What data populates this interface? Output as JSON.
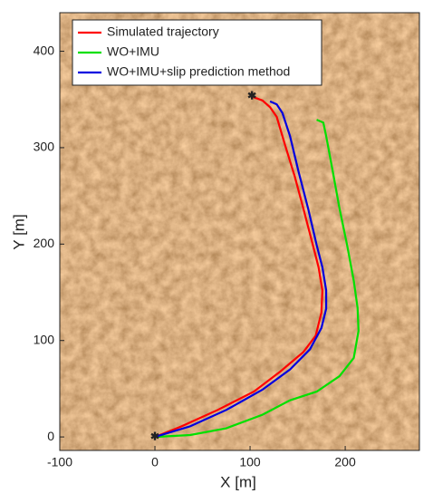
{
  "chart_data": {
    "type": "line",
    "xlabel": "X [m]",
    "ylabel": "Y [m]",
    "xlim": [
      -100,
      278
    ],
    "ylim": [
      -14,
      440
    ],
    "xticks": [
      -100,
      0,
      100,
      200
    ],
    "yticks": [
      0,
      100,
      200,
      300,
      400
    ],
    "legend": "upper left",
    "series": [
      {
        "name": "Simulated trajectory",
        "color": "#ff0000",
        "x": [
          0,
          28,
          66,
          104,
          132,
          156,
          169,
          175,
          176,
          172,
          166,
          156,
          147,
          137,
          128,
          121,
          113,
          102
        ],
        "values": [
          0,
          11,
          28,
          47,
          68,
          88,
          105,
          129,
          152,
          176,
          199,
          237,
          270,
          302,
          332,
          342,
          349,
          353
        ]
      },
      {
        "name": "WO+IMU",
        "color": "#00e000",
        "x": [
          0,
          37,
          75,
          113,
          142,
          170,
          194,
          209,
          214,
          213,
          209,
          202,
          194,
          187,
          180,
          177,
          170
        ],
        "values": [
          0,
          2,
          9,
          23,
          38,
          47,
          63,
          82,
          110,
          134,
          162,
          199,
          237,
          275,
          312,
          326,
          329
        ]
      },
      {
        "name": "WO+IMU+slip prediction method",
        "color": "#0000e0",
        "x": [
          0,
          37,
          75,
          113,
          142,
          163,
          175,
          180,
          180,
          176,
          170,
          161,
          151,
          142,
          134,
          128,
          121
        ],
        "values": [
          0,
          11,
          28,
          49,
          70,
          91,
          113,
          133,
          152,
          176,
          199,
          237,
          275,
          312,
          336,
          345,
          348
        ]
      }
    ]
  }
}
